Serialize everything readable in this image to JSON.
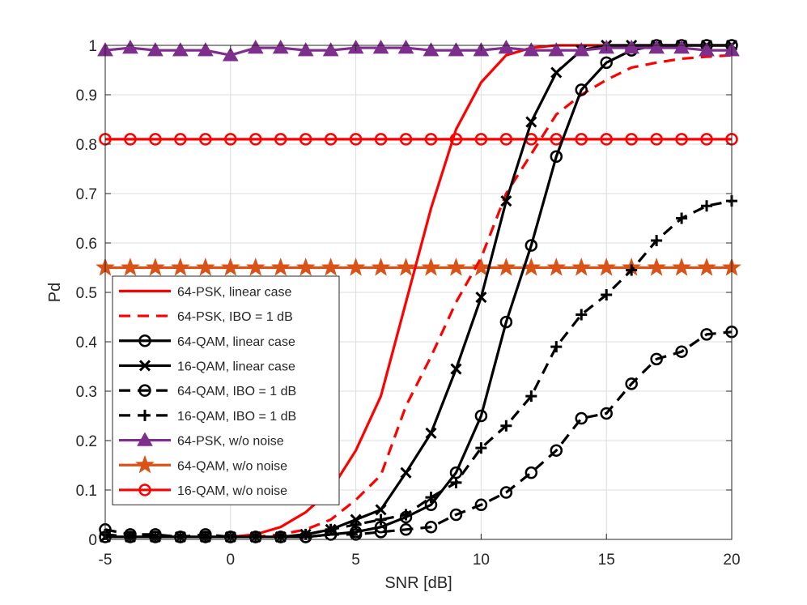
{
  "chart_data": {
    "type": "line",
    "xlabel": "SNR [dB]",
    "ylabel": "Pd",
    "xlim": [
      -5,
      20
    ],
    "ylim": [
      0,
      1
    ],
    "xticks": [
      "-5",
      "0",
      "5",
      "10",
      "15",
      "20"
    ],
    "yticks": [
      "0",
      "0.1",
      "0.2",
      "0.3",
      "0.4",
      "0.5",
      "0.6",
      "0.7",
      "0.8",
      "0.9",
      "1"
    ],
    "grid": true,
    "legend_position": "bottom-left",
    "series": [
      {
        "name": "64-PSK, linear case",
        "color": "#ff0000",
        "dash": "solid",
        "marker": "none",
        "x": [
          -5,
          -4,
          -3,
          -2,
          -1,
          0,
          1,
          2,
          3,
          4,
          5,
          6,
          7,
          8,
          9,
          10,
          11,
          12,
          13,
          14,
          15,
          16,
          17,
          18,
          19,
          20
        ],
        "y": [
          0.005,
          0.005,
          0.005,
          0.005,
          0.005,
          0.005,
          0.01,
          0.025,
          0.055,
          0.1,
          0.18,
          0.29,
          0.48,
          0.67,
          0.83,
          0.925,
          0.98,
          0.995,
          1,
          1,
          1,
          1,
          1,
          1,
          1,
          1
        ]
      },
      {
        "name": "64-PSK, IBO = 1 dB",
        "color": "#ff0000",
        "dash": "dash",
        "marker": "none",
        "x": [
          -5,
          -4,
          -3,
          -2,
          -1,
          0,
          1,
          2,
          3,
          4,
          5,
          6,
          7,
          8,
          9,
          10,
          11,
          12,
          13,
          14,
          15,
          16,
          17,
          18,
          19,
          20
        ],
        "y": [
          0.005,
          0.005,
          0.005,
          0.005,
          0.005,
          0.005,
          0.005,
          0.01,
          0.02,
          0.04,
          0.08,
          0.13,
          0.27,
          0.37,
          0.48,
          0.57,
          0.7,
          0.78,
          0.86,
          0.9,
          0.93,
          0.955,
          0.965,
          0.973,
          0.977,
          0.98
        ]
      },
      {
        "name": "64-QAM, linear case",
        "color": "#000000",
        "dash": "solid",
        "marker": "circle",
        "x": [
          -5,
          -4,
          -3,
          -2,
          -1,
          0,
          1,
          2,
          3,
          4,
          5,
          6,
          7,
          8,
          9,
          10,
          11,
          12,
          13,
          14,
          15,
          16,
          17,
          18,
          19,
          20
        ],
        "y": [
          0.005,
          0.005,
          0.005,
          0.005,
          0.005,
          0.005,
          0.005,
          0.005,
          0.005,
          0.01,
          0.015,
          0.025,
          0.045,
          0.07,
          0.135,
          0.25,
          0.44,
          0.595,
          0.775,
          0.91,
          0.965,
          0.99,
          1,
          1,
          1,
          1
        ]
      },
      {
        "name": "16-QAM, linear case",
        "color": "#000000",
        "dash": "solid",
        "marker": "x",
        "x": [
          -5,
          -4,
          -3,
          -2,
          -1,
          0,
          1,
          2,
          3,
          4,
          5,
          6,
          7,
          8,
          9,
          10,
          11,
          12,
          13,
          14,
          15,
          16,
          17,
          18,
          19,
          20
        ],
        "y": [
          0.005,
          0.005,
          0.005,
          0.005,
          0.005,
          0.005,
          0.005,
          0.005,
          0.01,
          0.02,
          0.04,
          0.06,
          0.135,
          0.215,
          0.345,
          0.49,
          0.685,
          0.845,
          0.945,
          0.99,
          1,
          1,
          1,
          1,
          1,
          1
        ]
      },
      {
        "name": "64-QAM, IBO = 1 dB",
        "color": "#000000",
        "dash": "dash",
        "marker": "circle",
        "x": [
          -5,
          -4,
          -3,
          -2,
          -1,
          0,
          1,
          2,
          3,
          4,
          5,
          6,
          7,
          8,
          9,
          10,
          11,
          12,
          13,
          14,
          15,
          16,
          17,
          18,
          19,
          20
        ],
        "y": [
          0.02,
          0.01,
          0.01,
          0.005,
          0.01,
          0.005,
          0.005,
          0.005,
          0.005,
          0.01,
          0.01,
          0.015,
          0.02,
          0.025,
          0.05,
          0.07,
          0.095,
          0.135,
          0.18,
          0.245,
          0.255,
          0.315,
          0.365,
          0.38,
          0.415,
          0.42
        ]
      },
      {
        "name": "16-QAM, IBO = 1 dB",
        "color": "#000000",
        "dash": "dash",
        "marker": "plus",
        "x": [
          -5,
          -4,
          -3,
          -2,
          -1,
          0,
          1,
          2,
          3,
          4,
          5,
          6,
          7,
          8,
          9,
          10,
          11,
          12,
          13,
          14,
          15,
          16,
          17,
          18,
          19,
          20
        ],
        "y": [
          0.01,
          0.005,
          0.005,
          0.005,
          0.005,
          0.005,
          0.005,
          0.005,
          0.01,
          0.02,
          0.03,
          0.04,
          0.05,
          0.085,
          0.115,
          0.185,
          0.23,
          0.29,
          0.39,
          0.455,
          0.495,
          0.545,
          0.605,
          0.65,
          0.675,
          0.685
        ]
      },
      {
        "name": "64-PSK, w/o noise",
        "color": "#7e2f8e",
        "dash": "solid",
        "marker": "triangle",
        "x": [
          -5,
          -4,
          -3,
          -2,
          -1,
          0,
          1,
          2,
          3,
          4,
          5,
          6,
          7,
          8,
          9,
          10,
          11,
          12,
          13,
          14,
          15,
          16,
          17,
          18,
          19,
          20
        ],
        "y": [
          0.99,
          0.995,
          0.99,
          0.99,
          0.99,
          0.98,
          0.995,
          0.995,
          0.99,
          0.99,
          0.995,
          0.995,
          0.995,
          0.99,
          0.99,
          0.99,
          0.995,
          0.99,
          0.99,
          0.99,
          0.995,
          0.995,
          0.995,
          0.995,
          0.99,
          0.99
        ]
      },
      {
        "name": "64-QAM, w/o noise",
        "color": "#d95319",
        "dash": "solid",
        "marker": "star",
        "x": [
          -5,
          -4,
          -3,
          -2,
          -1,
          0,
          1,
          2,
          3,
          4,
          5,
          6,
          7,
          8,
          9,
          10,
          11,
          12,
          13,
          14,
          15,
          16,
          17,
          18,
          19,
          20
        ],
        "y": [
          0.55,
          0.55,
          0.55,
          0.55,
          0.55,
          0.55,
          0.55,
          0.55,
          0.55,
          0.55,
          0.55,
          0.55,
          0.55,
          0.55,
          0.55,
          0.55,
          0.55,
          0.55,
          0.55,
          0.55,
          0.55,
          0.55,
          0.55,
          0.55,
          0.55,
          0.55
        ]
      },
      {
        "name": "16-QAM, w/o noise",
        "color": "#ff0000",
        "dash": "solid",
        "marker": "circle",
        "x": [
          -5,
          -4,
          -3,
          -2,
          -1,
          0,
          1,
          2,
          3,
          4,
          5,
          6,
          7,
          8,
          9,
          10,
          11,
          12,
          13,
          14,
          15,
          16,
          17,
          18,
          19,
          20
        ],
        "y": [
          0.81,
          0.81,
          0.81,
          0.81,
          0.81,
          0.81,
          0.81,
          0.81,
          0.81,
          0.81,
          0.81,
          0.81,
          0.81,
          0.81,
          0.81,
          0.81,
          0.81,
          0.81,
          0.81,
          0.81,
          0.81,
          0.81,
          0.81,
          0.81,
          0.81,
          0.81
        ]
      }
    ]
  }
}
